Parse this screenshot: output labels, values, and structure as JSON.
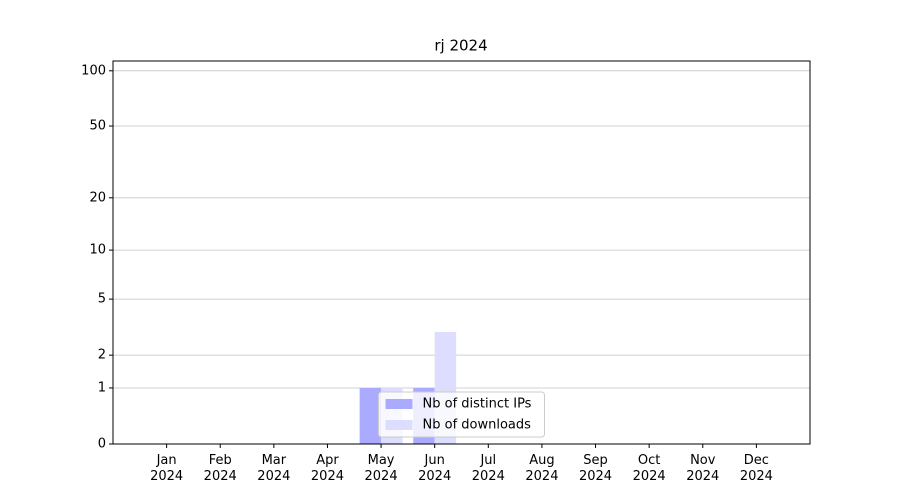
{
  "chart_data": {
    "type": "bar",
    "title": "rj 2024",
    "categories": [
      "Jan\n2024",
      "Feb\n2024",
      "Mar\n2024",
      "Apr\n2024",
      "May\n2024",
      "Jun\n2024",
      "Jul\n2024",
      "Aug\n2024",
      "Sep\n2024",
      "Oct\n2024",
      "Nov\n2024",
      "Dec\n2024"
    ],
    "series": [
      {
        "name": "Nb of distinct IPs",
        "color": "#aaaaff",
        "values": [
          0,
          0,
          0,
          0,
          1,
          1,
          0,
          0,
          0,
          0,
          0,
          0
        ]
      },
      {
        "name": "Nb of downloads",
        "color": "#ddddff",
        "values": [
          0,
          0,
          0,
          0,
          1,
          3,
          0,
          0,
          0,
          0,
          0,
          0
        ]
      }
    ],
    "yscale": "log1p",
    "ylim": [
      0,
      113
    ],
    "yticks": [
      0,
      1,
      2,
      5,
      10,
      20,
      50,
      100
    ],
    "grid": true,
    "legend": "lower center"
  }
}
